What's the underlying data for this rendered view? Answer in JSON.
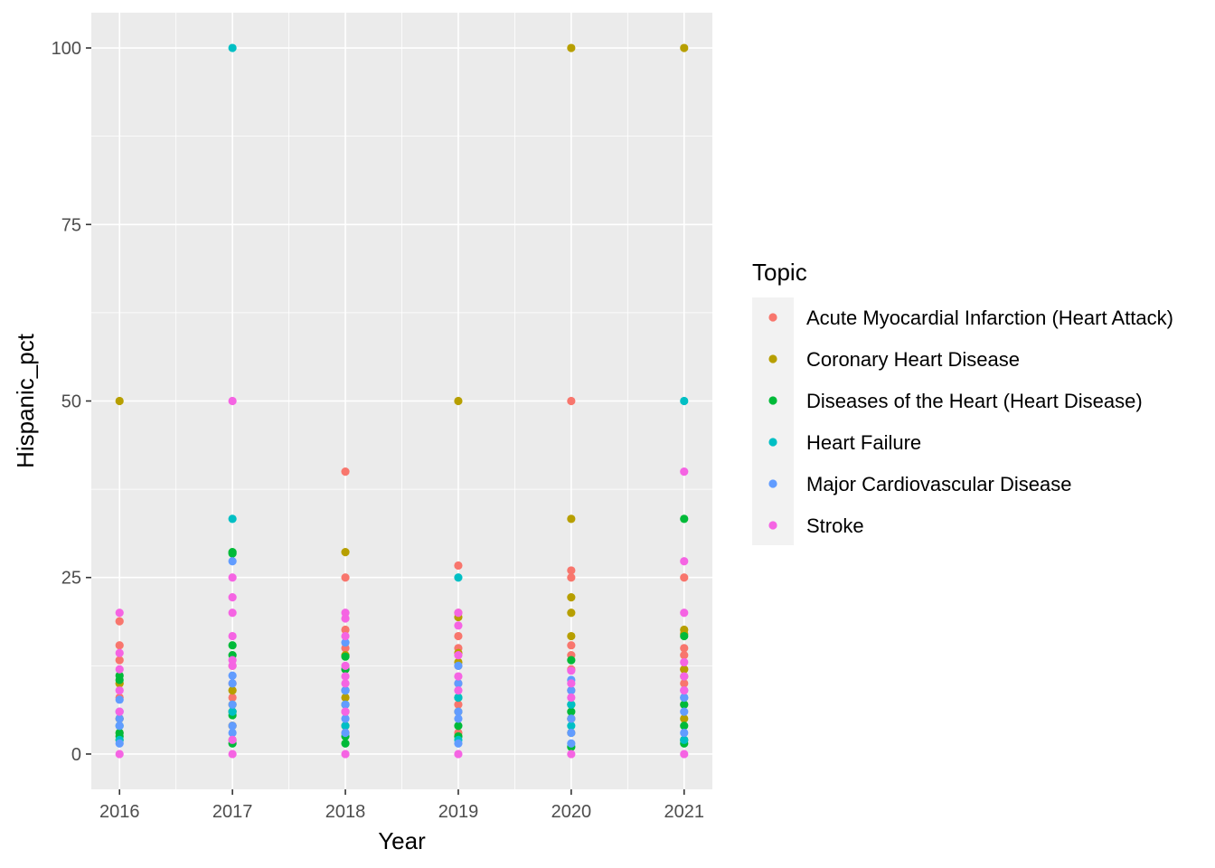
{
  "chart_data": {
    "type": "scatter",
    "title": "",
    "xlabel": "Year",
    "ylabel": "Hispanic_pct",
    "x_ticks": [
      "2016",
      "2017",
      "2018",
      "2019",
      "2020",
      "2021"
    ],
    "y_ticks": [
      "0",
      "25",
      "50",
      "75",
      "100"
    ],
    "xlim": [
      2015.75,
      2021.25
    ],
    "ylim": [
      -5,
      105
    ],
    "grid": true,
    "legend_title": "Topic",
    "legend_position": "right",
    "series": [
      {
        "name": "Acute Myocardial Infarction (Heart Attack)",
        "color": "#F8766D",
        "points": [
          [
            2016,
            18.8
          ],
          [
            2016,
            15.4
          ],
          [
            2016,
            13.3
          ],
          [
            2016,
            10
          ],
          [
            2016,
            8
          ],
          [
            2016,
            5
          ],
          [
            2016,
            3
          ],
          [
            2017,
            12.5
          ],
          [
            2017,
            10
          ],
          [
            2017,
            8
          ],
          [
            2017,
            6
          ],
          [
            2017,
            4
          ],
          [
            2018,
            40
          ],
          [
            2018,
            25
          ],
          [
            2018,
            17.6
          ],
          [
            2018,
            15
          ],
          [
            2018,
            12
          ],
          [
            2018,
            9
          ],
          [
            2018,
            6
          ],
          [
            2018,
            3
          ],
          [
            2019,
            26.7
          ],
          [
            2019,
            20
          ],
          [
            2019,
            16.7
          ],
          [
            2019,
            15
          ],
          [
            2019,
            12.5
          ],
          [
            2019,
            10
          ],
          [
            2019,
            7
          ],
          [
            2019,
            3
          ],
          [
            2020,
            50
          ],
          [
            2020,
            26
          ],
          [
            2020,
            25
          ],
          [
            2020,
            15.4
          ],
          [
            2020,
            14
          ],
          [
            2020,
            12
          ],
          [
            2020,
            9
          ],
          [
            2020,
            5
          ],
          [
            2021,
            25
          ],
          [
            2021,
            15
          ],
          [
            2021,
            14
          ],
          [
            2021,
            12
          ],
          [
            2021,
            10
          ],
          [
            2021,
            7
          ]
        ]
      },
      {
        "name": "Coronary Heart Disease",
        "color": "#B79F00",
        "points": [
          [
            2016,
            50
          ],
          [
            2016,
            10
          ],
          [
            2016,
            5
          ],
          [
            2016,
            2
          ],
          [
            2017,
            9
          ],
          [
            2017,
            7
          ],
          [
            2017,
            4
          ],
          [
            2017,
            2
          ],
          [
            2018,
            28.6
          ],
          [
            2018,
            14
          ],
          [
            2018,
            8
          ],
          [
            2018,
            4
          ],
          [
            2019,
            50
          ],
          [
            2019,
            19.4
          ],
          [
            2019,
            14.3
          ],
          [
            2019,
            13
          ],
          [
            2019,
            6
          ],
          [
            2019,
            2.5
          ],
          [
            2020,
            100
          ],
          [
            2020,
            33.3
          ],
          [
            2020,
            22.2
          ],
          [
            2020,
            20
          ],
          [
            2020,
            16.7
          ],
          [
            2020,
            5
          ],
          [
            2020,
            3
          ],
          [
            2021,
            100
          ],
          [
            2021,
            17.6
          ],
          [
            2021,
            17
          ],
          [
            2021,
            12
          ],
          [
            2021,
            11
          ],
          [
            2021,
            5
          ]
        ]
      },
      {
        "name": "Diseases of the Heart (Heart Disease)",
        "color": "#00BA38",
        "points": [
          [
            2016,
            11.1
          ],
          [
            2016,
            10.5
          ],
          [
            2016,
            3
          ],
          [
            2016,
            2.5
          ],
          [
            2017,
            28.6
          ],
          [
            2017,
            28.4
          ],
          [
            2017,
            15.4
          ],
          [
            2017,
            14
          ],
          [
            2017,
            6
          ],
          [
            2017,
            5.5
          ],
          [
            2017,
            1.5
          ],
          [
            2018,
            13.8
          ],
          [
            2018,
            12
          ],
          [
            2018,
            7
          ],
          [
            2018,
            2.5
          ],
          [
            2018,
            1.5
          ],
          [
            2019,
            8
          ],
          [
            2019,
            4
          ],
          [
            2019,
            2.5
          ],
          [
            2020,
            13.3
          ],
          [
            2020,
            7
          ],
          [
            2020,
            6
          ],
          [
            2020,
            1
          ],
          [
            2021,
            33.3
          ],
          [
            2021,
            16.7
          ],
          [
            2021,
            7
          ],
          [
            2021,
            4
          ],
          [
            2021,
            2
          ],
          [
            2021,
            1.5
          ]
        ]
      },
      {
        "name": "Heart Failure",
        "color": "#00BFC4",
        "points": [
          [
            2016,
            4
          ],
          [
            2016,
            2
          ],
          [
            2017,
            100
          ],
          [
            2017,
            33.3
          ],
          [
            2017,
            6
          ],
          [
            2018,
            9
          ],
          [
            2018,
            4
          ],
          [
            2019,
            25
          ],
          [
            2019,
            8
          ],
          [
            2019,
            2
          ],
          [
            2020,
            7
          ],
          [
            2020,
            4
          ],
          [
            2021,
            50
          ],
          [
            2021,
            8
          ],
          [
            2021,
            2
          ]
        ]
      },
      {
        "name": "Major Cardiovascular Disease",
        "color": "#619CFF",
        "points": [
          [
            2016,
            7.7
          ],
          [
            2016,
            6
          ],
          [
            2016,
            5
          ],
          [
            2016,
            4
          ],
          [
            2016,
            1.5
          ],
          [
            2017,
            27.3
          ],
          [
            2017,
            11.1
          ],
          [
            2017,
            10
          ],
          [
            2017,
            7
          ],
          [
            2017,
            4
          ],
          [
            2017,
            3
          ],
          [
            2018,
            15.8
          ],
          [
            2018,
            9
          ],
          [
            2018,
            7
          ],
          [
            2018,
            5
          ],
          [
            2018,
            3
          ],
          [
            2019,
            12.5
          ],
          [
            2019,
            10
          ],
          [
            2019,
            6
          ],
          [
            2019,
            5
          ],
          [
            2019,
            1.5
          ],
          [
            2020,
            10.5
          ],
          [
            2020,
            9
          ],
          [
            2020,
            5
          ],
          [
            2020,
            3
          ],
          [
            2020,
            1.5
          ],
          [
            2021,
            9
          ],
          [
            2021,
            8
          ],
          [
            2021,
            6
          ],
          [
            2021,
            3
          ]
        ]
      },
      {
        "name": "Stroke",
        "color": "#F564E3",
        "points": [
          [
            2016,
            20
          ],
          [
            2016,
            14.3
          ],
          [
            2016,
            12
          ],
          [
            2016,
            9
          ],
          [
            2016,
            6
          ],
          [
            2016,
            0
          ],
          [
            2017,
            50
          ],
          [
            2017,
            25
          ],
          [
            2017,
            22.2
          ],
          [
            2017,
            20
          ],
          [
            2017,
            16.7
          ],
          [
            2017,
            13.3
          ],
          [
            2017,
            12.5
          ],
          [
            2017,
            2
          ],
          [
            2017,
            0
          ],
          [
            2018,
            20
          ],
          [
            2018,
            19.2
          ],
          [
            2018,
            16.7
          ],
          [
            2018,
            12.5
          ],
          [
            2018,
            11
          ],
          [
            2018,
            10
          ],
          [
            2018,
            6
          ],
          [
            2018,
            0
          ],
          [
            2019,
            20
          ],
          [
            2019,
            18.2
          ],
          [
            2019,
            14
          ],
          [
            2019,
            11
          ],
          [
            2019,
            9
          ],
          [
            2019,
            0
          ],
          [
            2020,
            11.8
          ],
          [
            2020,
            10
          ],
          [
            2020,
            8
          ],
          [
            2020,
            0
          ],
          [
            2021,
            40
          ],
          [
            2021,
            27.3
          ],
          [
            2021,
            20
          ],
          [
            2021,
            13
          ],
          [
            2021,
            11
          ],
          [
            2021,
            9
          ],
          [
            2021,
            0
          ]
        ]
      }
    ]
  }
}
